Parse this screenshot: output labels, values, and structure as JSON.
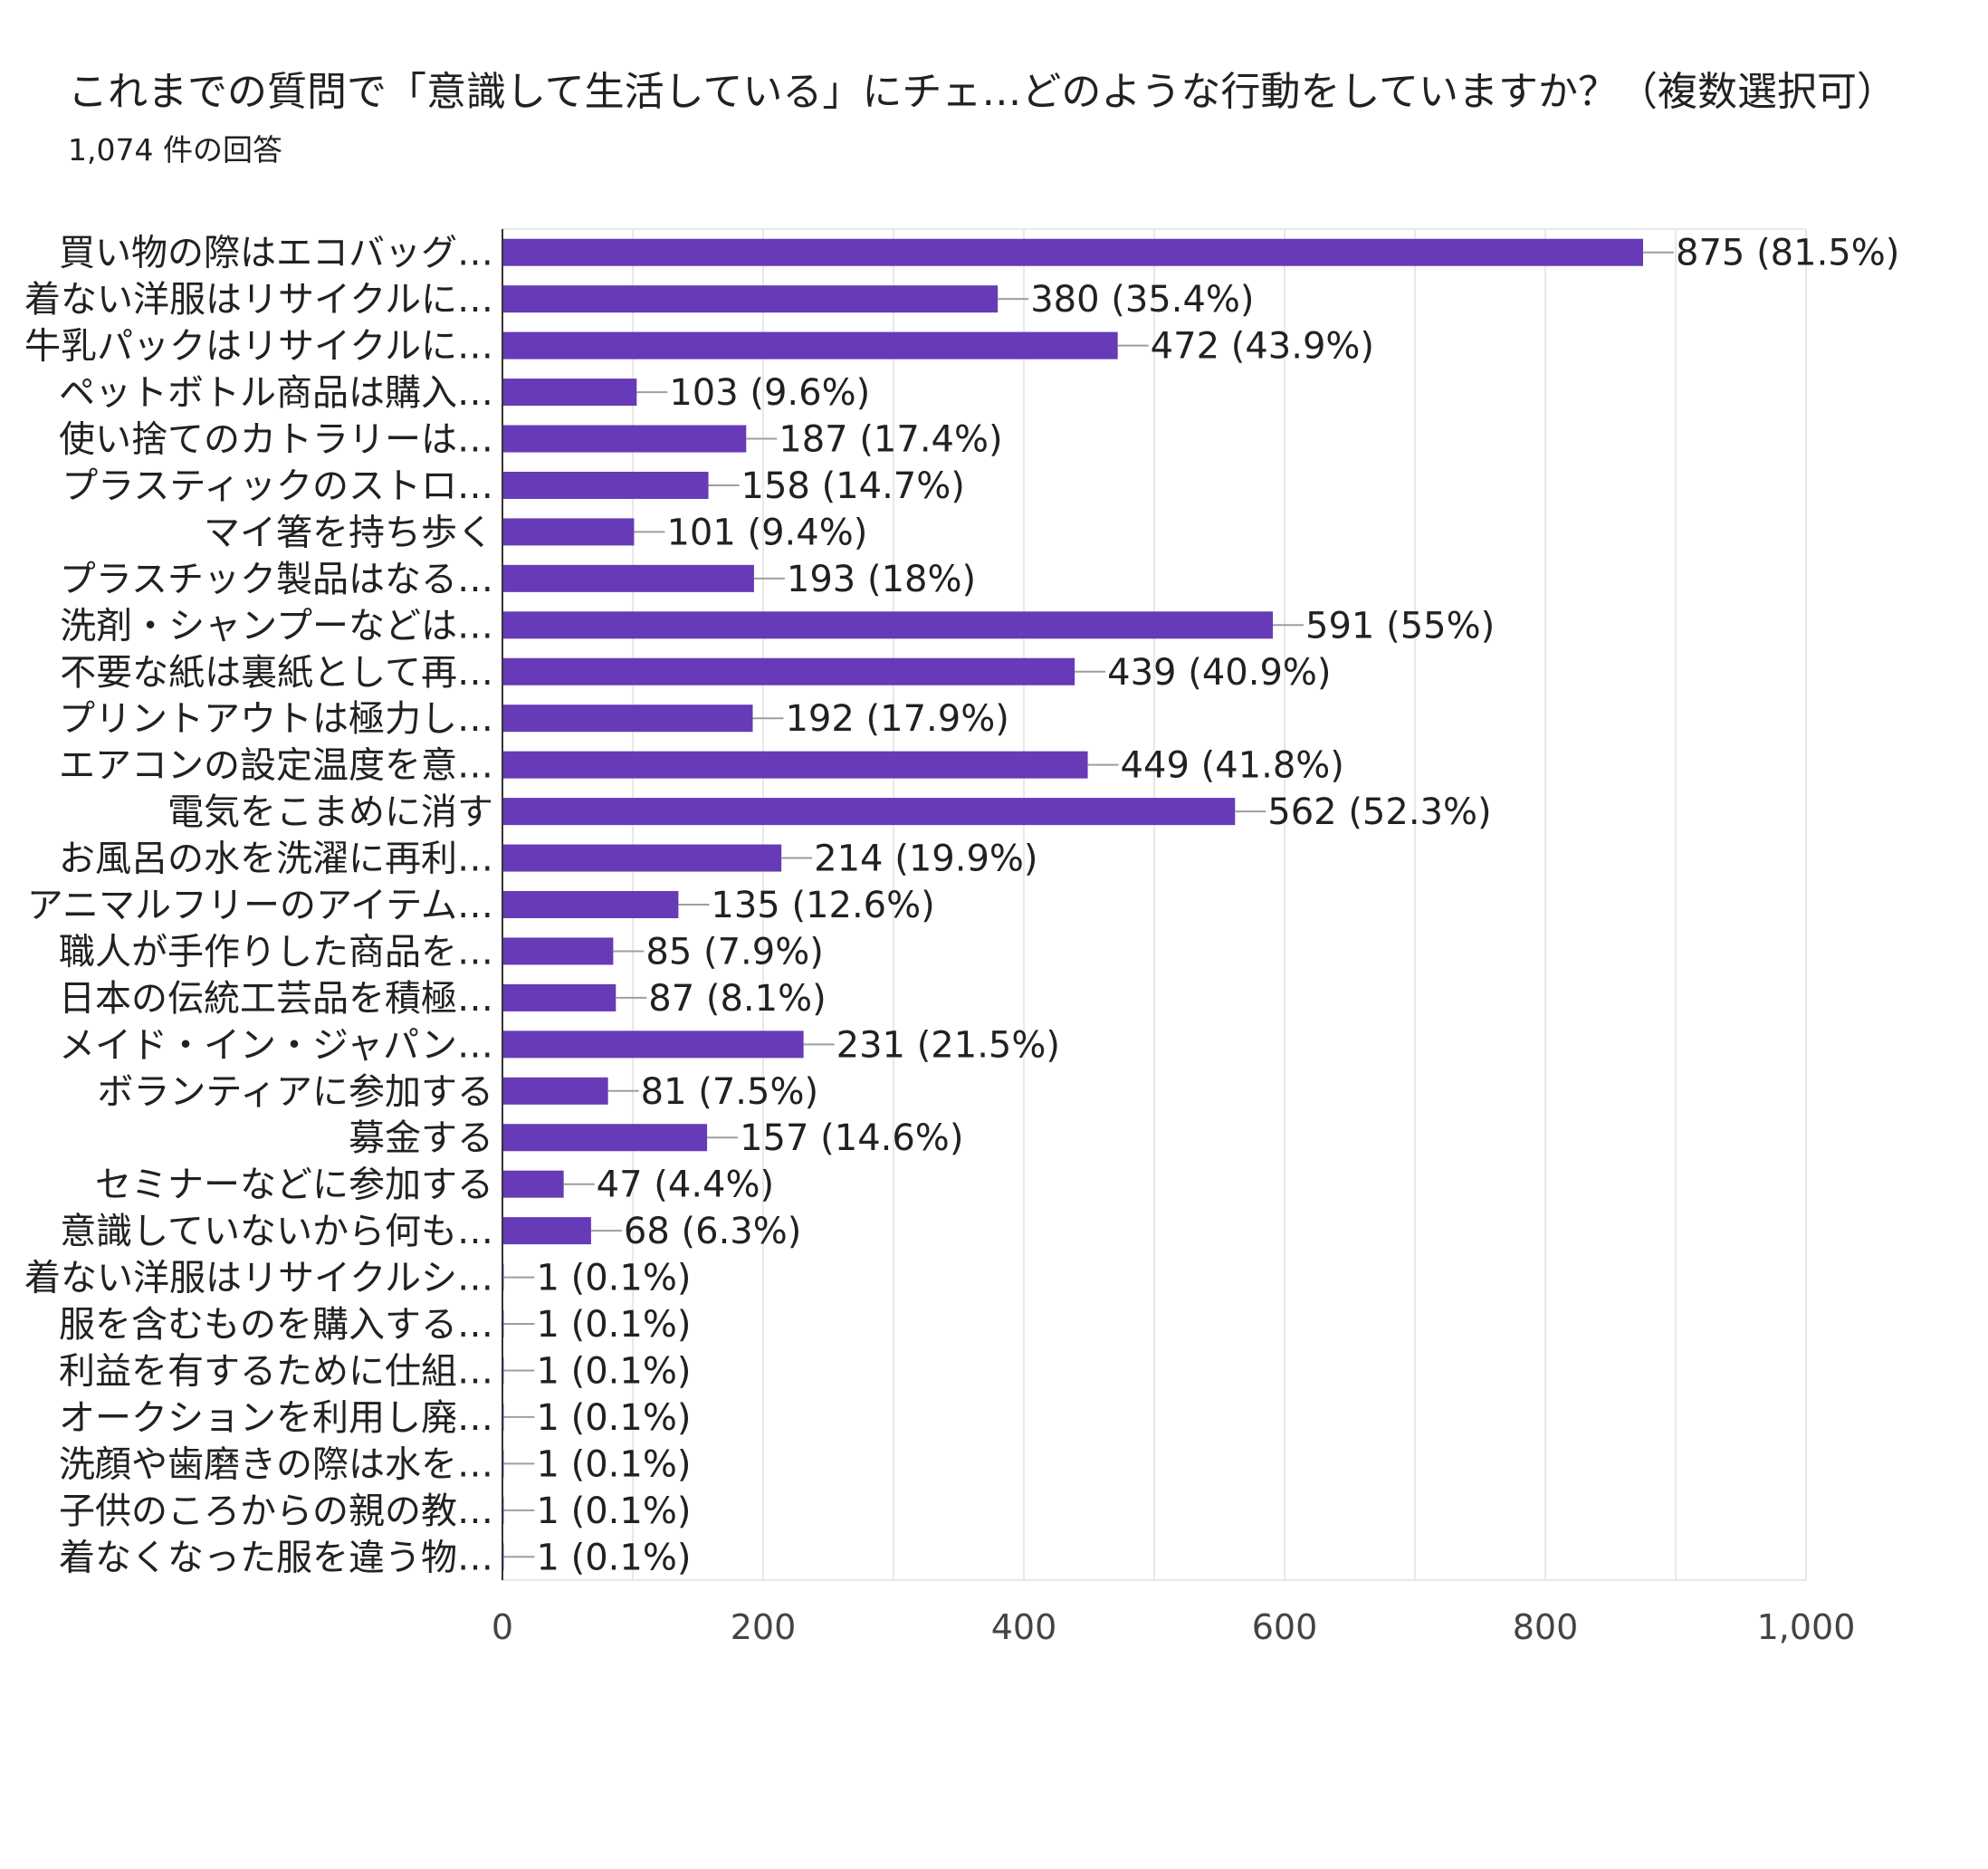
{
  "header": {
    "title": "これまでの質問で「意識して生活している」にチェ…どのような行動をしていますか？（複数選択可）",
    "response_count": "1,074 件の回答"
  },
  "chart_data": {
    "type": "bar",
    "orientation": "horizontal",
    "title": "これまでの質問で「意識して生活している」にチェ…どのような行動をしていますか？（複数選択可）",
    "subtitle": "1,074 件の回答",
    "xlim": [
      0,
      1000
    ],
    "x_ticks": [
      0,
      200,
      400,
      600,
      800,
      1000
    ],
    "x_tick_labels": [
      "0",
      "200",
      "400",
      "600",
      "800",
      "1,000"
    ],
    "grid": true,
    "bar_color": "#673ab7",
    "categories": [
      "買い物の際はエコバッグ…",
      "着ない洋服はリサイクルに…",
      "牛乳パックはリサイクルに…",
      "ペットボトル商品は購入…",
      "使い捨てのカトラリーは…",
      "プラスティックのストロ…",
      "マイ箸を持ち歩く",
      "プラスチック製品はなる…",
      "洗剤・シャンプーなどは…",
      "不要な紙は裏紙として再…",
      "プリントアウトは極力し…",
      "エアコンの設定温度を意…",
      "電気をこまめに消す",
      "お風呂の水を洗濯に再利…",
      "アニマルフリーのアイテム…",
      "職人が手作りした商品を…",
      "日本の伝統工芸品を積極…",
      "メイド・イン・ジャパン…",
      "ボランティアに参加する",
      "募金する",
      "セミナーなどに参加する",
      "意識していないから何も…",
      "着ない洋服はリサイクルシ…",
      "服を含むものを購入する…",
      "利益を有するために仕組…",
      "オークションを利用し廃…",
      "洗顔や歯磨きの際は水を…",
      "子供のころからの親の教…",
      "着なくなった服を違う物…"
    ],
    "values": [
      875,
      380,
      472,
      103,
      187,
      158,
      101,
      193,
      591,
      439,
      192,
      449,
      562,
      214,
      135,
      85,
      87,
      231,
      81,
      157,
      47,
      68,
      1,
      1,
      1,
      1,
      1,
      1,
      1
    ],
    "data_labels": [
      "875 (81.5%)",
      "380 (35.4%)",
      "472 (43.9%)",
      "103 (9.6%)",
      "187 (17.4%)",
      "158 (14.7%)",
      "101 (9.4%)",
      "193 (18%)",
      "591 (55%)",
      "439 (40.9%)",
      "192 (17.9%)",
      "449 (41.8%)",
      "562 (52.3%)",
      "214 (19.9%)",
      "135 (12.6%)",
      "85 (7.9%)",
      "87 (8.1%)",
      "231 (21.5%)",
      "81 (7.5%)",
      "157 (14.6%)",
      "47 (4.4%)",
      "68 (6.3%)",
      "1 (0.1%)",
      "1 (0.1%)",
      "1 (0.1%)",
      "1 (0.1%)",
      "1 (0.1%)",
      "1 (0.1%)",
      "1 (0.1%)"
    ]
  }
}
